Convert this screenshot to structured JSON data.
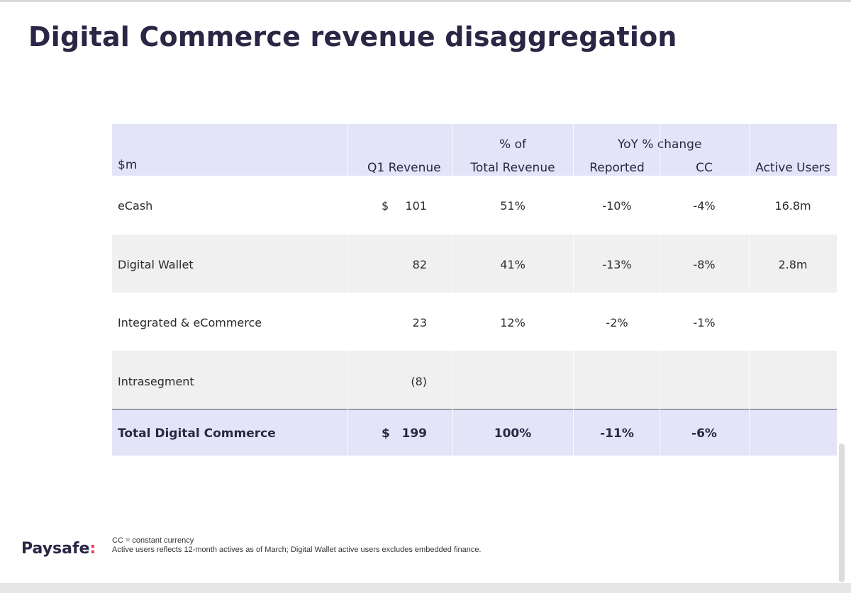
{
  "title": "Digital Commerce revenue disaggregation",
  "table": {
    "header": {
      "label": "$m",
      "q1_revenue": "Q1 Revenue",
      "pct_line1": "% of",
      "pct_line2": "Total Revenue",
      "yoy_group": "YoY % change",
      "reported": "Reported",
      "cc": "CC",
      "active_users": "Active Users"
    },
    "rows": [
      {
        "label": "eCash",
        "currency": "$",
        "q1_revenue": "101",
        "pct_total": "51%",
        "reported": "-10%",
        "cc": "-4%",
        "active_users": "16.8m"
      },
      {
        "label": "Digital Wallet",
        "currency": "",
        "q1_revenue": "82",
        "pct_total": "41%",
        "reported": "-13%",
        "cc": "-8%",
        "active_users": "2.8m"
      },
      {
        "label": "Integrated & eCommerce",
        "currency": "",
        "q1_revenue": "23",
        "pct_total": "12%",
        "reported": "-2%",
        "cc": "-1%",
        "active_users": ""
      },
      {
        "label": "Intrasegment",
        "currency": "",
        "q1_revenue": "(8)",
        "pct_total": "",
        "reported": "",
        "cc": "",
        "active_users": ""
      }
    ],
    "total": {
      "label": "Total Digital Commerce",
      "currency": "$",
      "q1_revenue": "199",
      "pct_total": "100%",
      "reported": "-11%",
      "cc": "-6%",
      "active_users": ""
    }
  },
  "footer": {
    "logo_text": "Paysafe",
    "logo_mark": ":",
    "note_1": "CC = constant currency",
    "note_2": "Active users reflects 12-month actives as of March; Digital Wallet active users excludes embedded finance."
  },
  "colors": {
    "title": "#2a2745",
    "header_bg": "#e3e4f7",
    "stripe_bg": "#f0f0f0",
    "logo_accent": "#e8365a"
  }
}
